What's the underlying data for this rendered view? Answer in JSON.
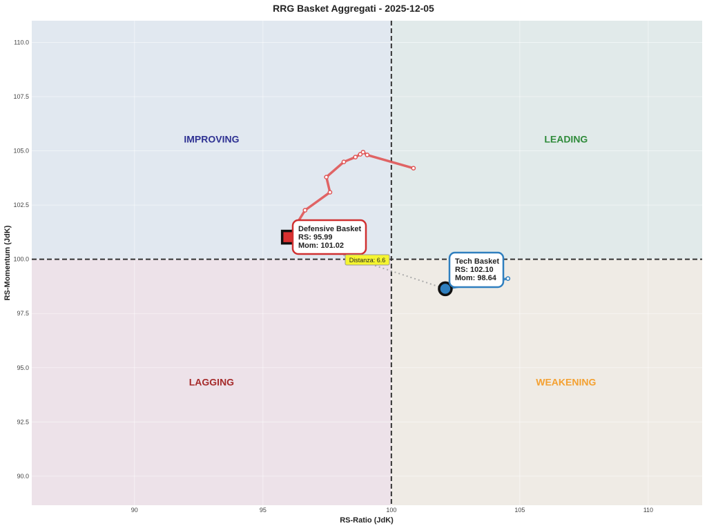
{
  "chart_data": {
    "type": "scatter",
    "title": "RRG Basket Aggregati - 2025-12-05",
    "xlabel": "RS-Ratio (JdK)",
    "ylabel": "RS-Momentum (JdK)",
    "xlim": [
      86.0,
      112.1
    ],
    "ylim": [
      88.66,
      111.0
    ],
    "xticks": [
      90,
      95,
      100,
      105,
      110
    ],
    "yticks": [
      90.0,
      92.5,
      95.0,
      97.5,
      100.0,
      102.5,
      105.0,
      107.5,
      110.0
    ],
    "grid": true,
    "center": {
      "x": 100,
      "y": 100
    },
    "quadrants": [
      {
        "name": "IMPROVING",
        "color": "#2e3192",
        "bg": "#e1e8f0",
        "label_pos": [
          93,
          105.5
        ]
      },
      {
        "name": "LEADING",
        "color": "#2e8b3a",
        "bg": "#e1eaea",
        "label_pos": [
          106.8,
          105.5
        ]
      },
      {
        "name": "LAGGING",
        "color": "#a52a2a",
        "bg": "#ede2e9",
        "label_pos": [
          93,
          94.3
        ]
      },
      {
        "name": "WEAKENING",
        "color": "#f4a030",
        "bg": "#efebe5",
        "label_pos": [
          106.8,
          94.3
        ]
      }
    ],
    "series": [
      {
        "name": "Defensive Basket",
        "color": "#e05555",
        "marker": "square",
        "current": {
          "rs": 95.99,
          "mom": 101.02
        },
        "trail": [
          [
            100.86,
            104.2
          ],
          [
            99.06,
            104.81
          ],
          [
            98.9,
            104.94
          ],
          [
            98.79,
            104.84
          ],
          [
            98.6,
            104.71
          ],
          [
            98.15,
            104.49
          ],
          [
            97.47,
            103.79
          ],
          [
            97.61,
            103.09
          ],
          [
            96.64,
            102.26
          ],
          [
            95.99,
            101.02
          ]
        ],
        "annotation": [
          "Defensive Basket",
          "RS: 95.99",
          "Mom: 101.02"
        ]
      },
      {
        "name": "Tech Basket",
        "color": "#2f7fbf",
        "marker": "circle",
        "current": {
          "rs": 102.1,
          "mom": 98.64
        },
        "trail": [
          [
            104.54,
            99.11
          ],
          [
            102.1,
            98.64
          ]
        ],
        "annotation": [
          "Tech Basket",
          "RS: 102.10",
          "Mom: 98.64"
        ]
      }
    ],
    "distance_annotation": {
      "label": "Distanza: 6.6",
      "value": 6.6
    }
  }
}
